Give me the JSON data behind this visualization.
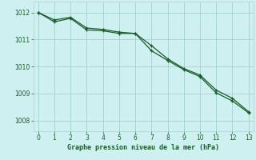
{
  "xlabel": "Graphe pression niveau de la mer (hPa)",
  "background_color": "#cff0f0",
  "grid_color": "#aad4d4",
  "line_color": "#1a5c2a",
  "x_ticks": [
    0,
    1,
    2,
    3,
    4,
    5,
    6,
    7,
    8,
    9,
    10,
    11,
    12,
    13
  ],
  "ylim": [
    1007.6,
    1012.4
  ],
  "y_ticks": [
    1008,
    1009,
    1010,
    1011,
    1012
  ],
  "xlim": [
    -0.3,
    13.3
  ],
  "line1_x": [
    0,
    1,
    2,
    3,
    4,
    5,
    6,
    7,
    8,
    9,
    10,
    11,
    12,
    13
  ],
  "line1_y": [
    1012.0,
    1011.72,
    1011.82,
    1011.42,
    1011.37,
    1011.27,
    1011.22,
    1010.77,
    1010.28,
    1009.92,
    1009.68,
    1009.12,
    1008.82,
    1008.32
  ],
  "line2_x": [
    0,
    1,
    2,
    3,
    4,
    5,
    6,
    7,
    8,
    9,
    10,
    11,
    12,
    13
  ],
  "line2_y": [
    1012.0,
    1011.65,
    1011.78,
    1011.35,
    1011.32,
    1011.22,
    1011.22,
    1010.58,
    1010.22,
    1009.88,
    1009.62,
    1009.02,
    1008.72,
    1008.28
  ]
}
